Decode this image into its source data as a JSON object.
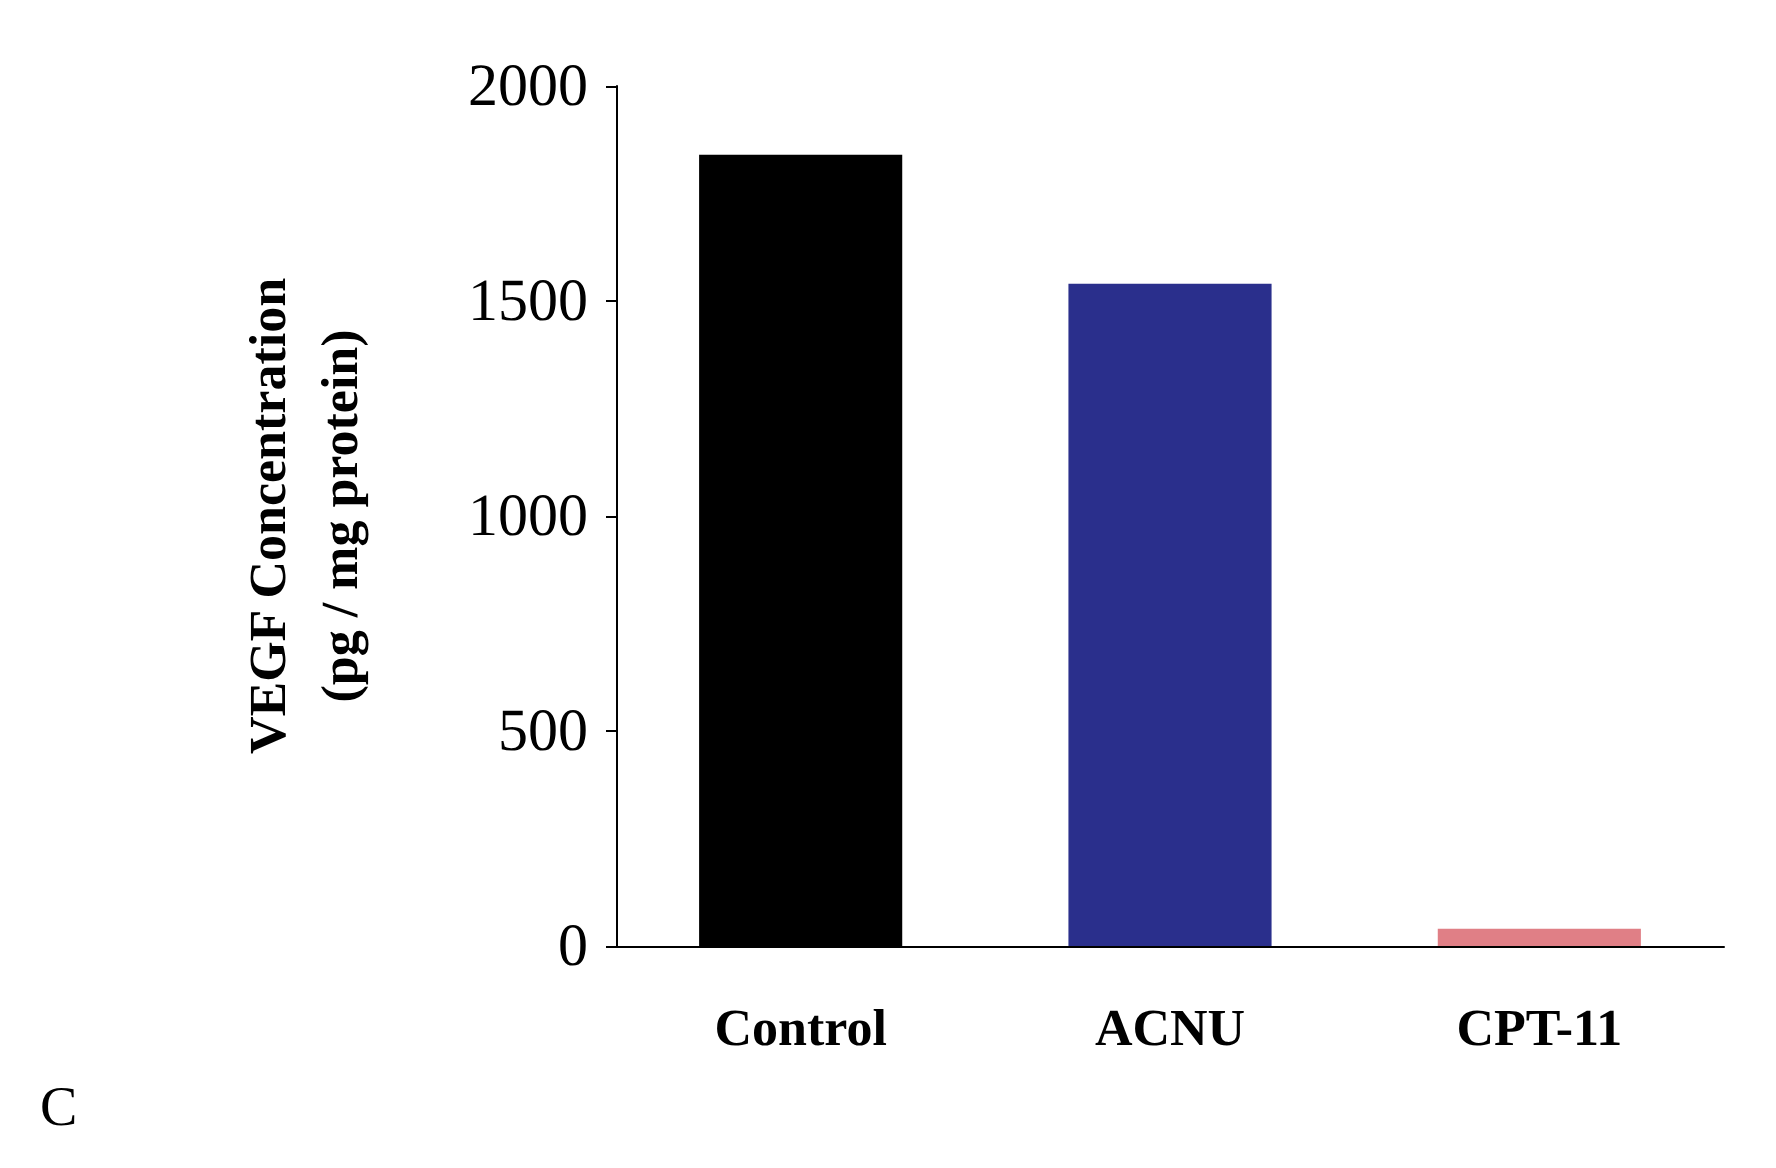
{
  "chart_data": {
    "type": "bar",
    "ylabel": "VEGF Concentration\n(pg / mg protein)",
    "categories": [
      "Control",
      "ACNU",
      "CPT-11"
    ],
    "values": [
      1840,
      1540,
      40
    ],
    "colors": [
      "#000000",
      "#2a2f8c",
      "#e07f86"
    ],
    "ylim": [
      0,
      2000
    ],
    "yticks": [
      0,
      500,
      1000,
      1500,
      2000
    ],
    "grid": false,
    "annotations": [
      "C"
    ]
  }
}
